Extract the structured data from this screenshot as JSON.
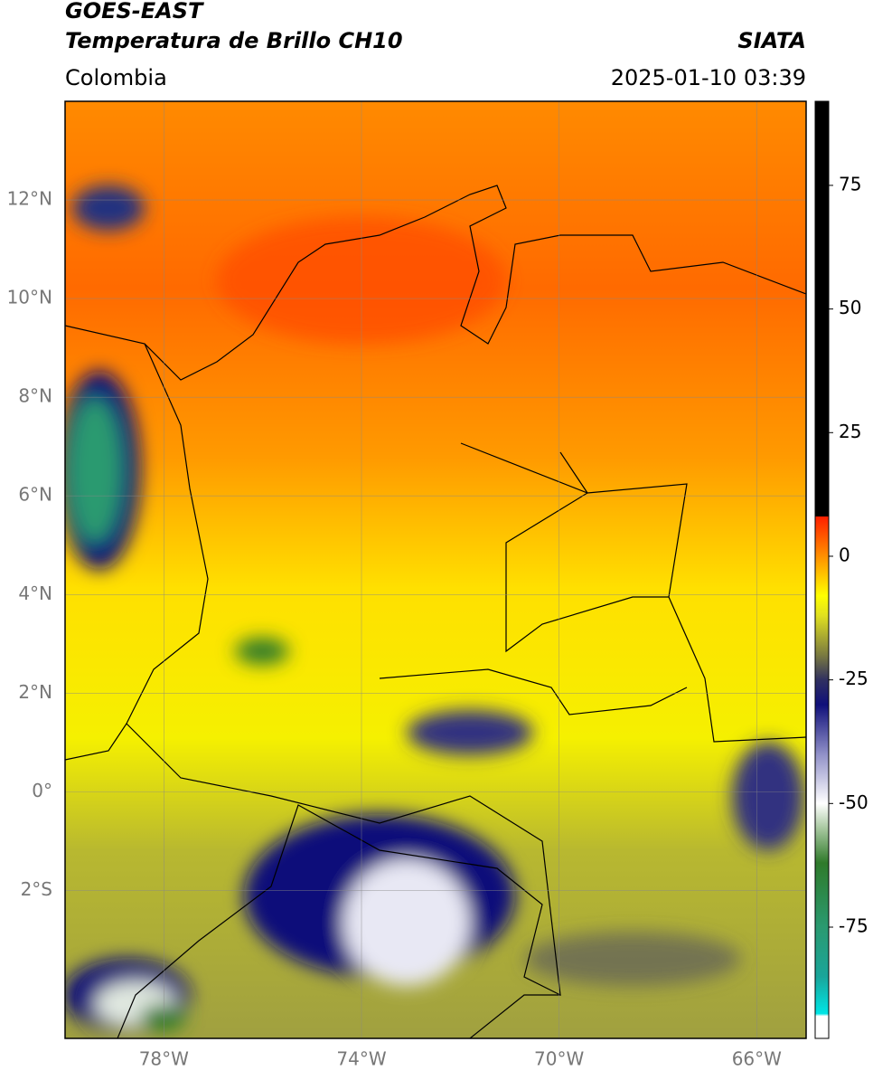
{
  "header": {
    "title": "GOES-EAST",
    "subtitle": "Temperatura de Brillo CH10",
    "source": "SIATA",
    "region": "Colombia",
    "datetime": "2025-01-10 03:39"
  },
  "map": {
    "xlim": [
      -80,
      -65
    ],
    "ylim": [
      -5,
      14
    ],
    "xticks": [
      {
        "value": -78,
        "label": "78°W"
      },
      {
        "value": -74,
        "label": "74°W"
      },
      {
        "value": -70,
        "label": "70°W"
      },
      {
        "value": -66,
        "label": "66°W"
      }
    ],
    "yticks": [
      {
        "value": 12,
        "label": "12°N"
      },
      {
        "value": 10,
        "label": "10°N"
      },
      {
        "value": 8,
        "label": "8°N"
      },
      {
        "value": 6,
        "label": "6°N"
      },
      {
        "value": 4,
        "label": "4°N"
      },
      {
        "value": 2,
        "label": "2°N"
      },
      {
        "value": 0,
        "label": "0°"
      },
      {
        "value": -2,
        "label": "2°S"
      }
    ]
  },
  "colorbar": {
    "lim": [
      -97.5,
      92
    ],
    "ticks": [
      75,
      50,
      25,
      0,
      -25,
      -50,
      -75
    ],
    "stops": [
      {
        "value": -97.5,
        "color": "#ffffff"
      },
      {
        "value": -93,
        "color": "#ffffff"
      },
      {
        "value": -92.5,
        "color": "#00e5e5"
      },
      {
        "value": -85,
        "color": "#1aa59a"
      },
      {
        "value": -75,
        "color": "#2a9a70"
      },
      {
        "value": -62,
        "color": "#2f7a2a"
      },
      {
        "value": -55,
        "color": "#a8c8a0"
      },
      {
        "value": -50,
        "color": "#ffffff"
      },
      {
        "value": -40,
        "color": "#9090c8"
      },
      {
        "value": -30,
        "color": "#10107a"
      },
      {
        "value": -25,
        "color": "#303060"
      },
      {
        "value": -20,
        "color": "#7a7a40"
      },
      {
        "value": -12,
        "color": "#e0e020"
      },
      {
        "value": -8,
        "color": "#ffff00"
      },
      {
        "value": 0,
        "color": "#ff9000"
      },
      {
        "value": 8,
        "color": "#ff2000"
      },
      {
        "value": 8.01,
        "color": "#000000"
      },
      {
        "value": 92,
        "color": "#000000"
      }
    ]
  }
}
